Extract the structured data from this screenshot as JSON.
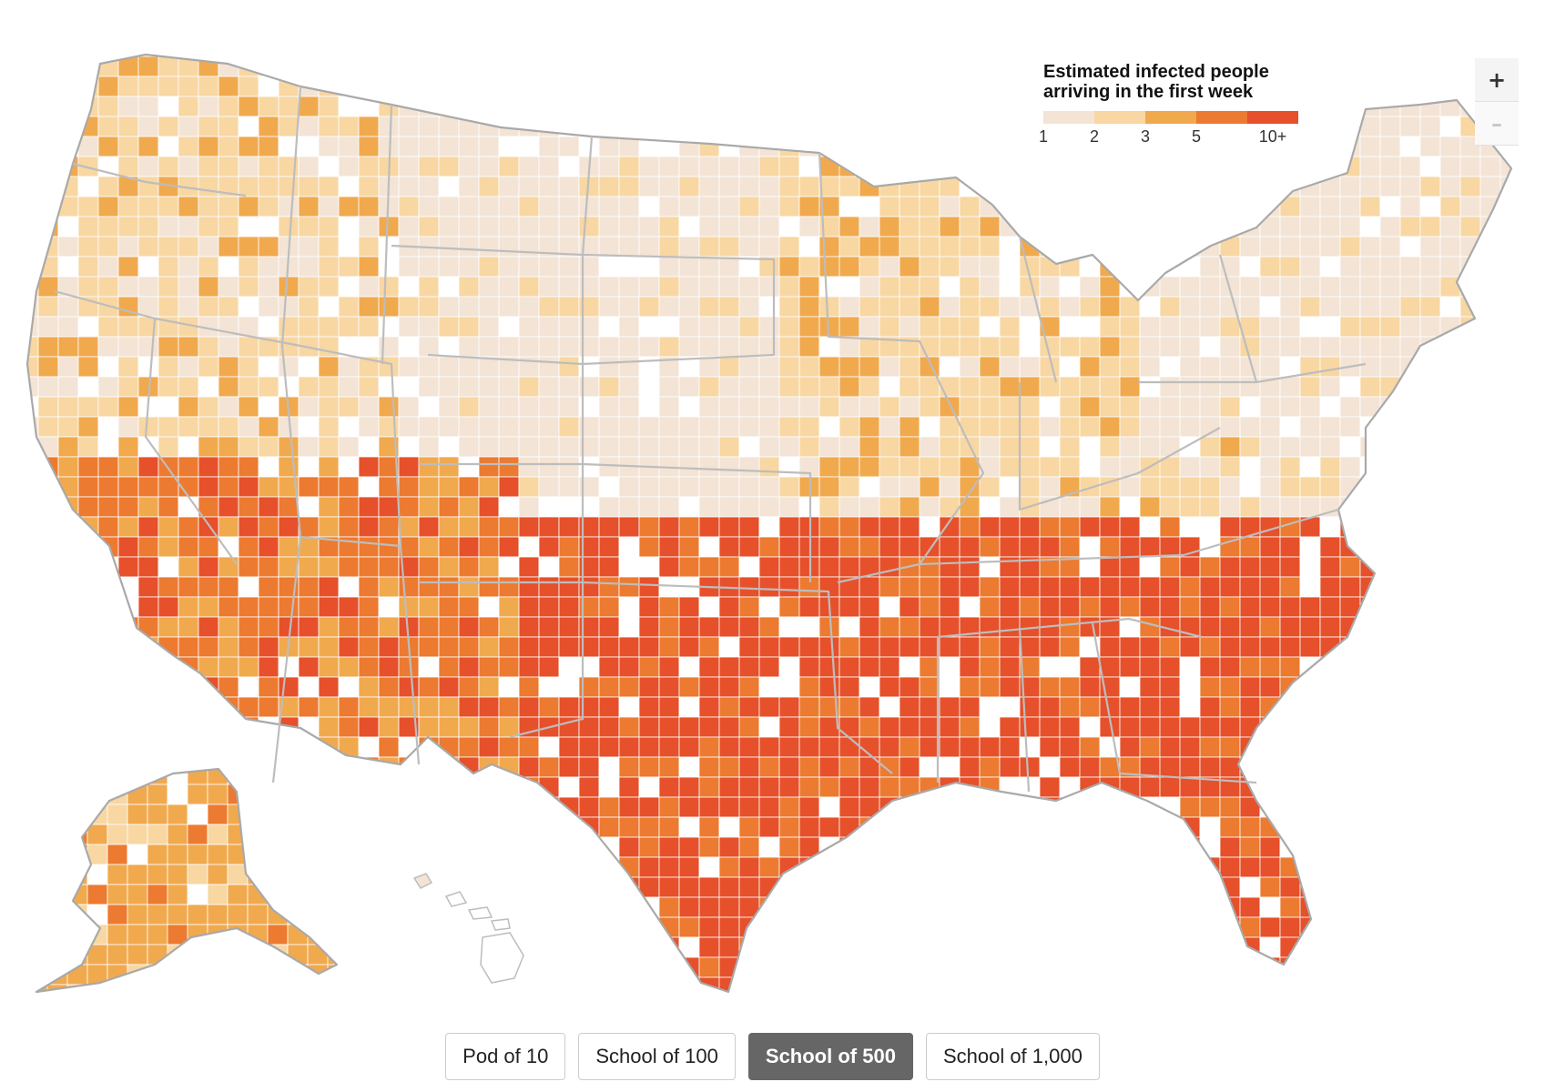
{
  "legend": {
    "title_line1": "Estimated infected people",
    "title_line2": "arriving in the first week",
    "bins": [
      {
        "label": "1",
        "color": "#f3e4d6"
      },
      {
        "label": "2",
        "color": "#f8d7a2"
      },
      {
        "label": "3",
        "color": "#f1a94e"
      },
      {
        "label": "5",
        "color": "#ec7a30"
      },
      {
        "label": "10+",
        "color": "#e6502a"
      }
    ],
    "empty_color": "#ffffff"
  },
  "zoom": {
    "in_label": "+",
    "out_label": "–"
  },
  "scenarios": [
    {
      "label": "Pod of 10",
      "active": false
    },
    {
      "label": "School of 100",
      "active": false
    },
    {
      "label": "School of 500",
      "active": true
    },
    {
      "label": "School of 1,000",
      "active": false
    }
  ],
  "map": {
    "type": "choropleth",
    "geography": "U.S. counties",
    "regional_levels": [
      {
        "region": "Southeast",
        "level": "10+"
      },
      {
        "region": "Gulf Coast / Texas",
        "level": "10+"
      },
      {
        "region": "Southwest",
        "level": "5"
      },
      {
        "region": "Great Plains",
        "level": "1"
      },
      {
        "region": "Midwest",
        "level": "2"
      },
      {
        "region": "Northeast",
        "level": "1"
      },
      {
        "region": "Pacific Northwest",
        "level": "2"
      },
      {
        "region": "Alaska",
        "level": "3"
      }
    ]
  }
}
